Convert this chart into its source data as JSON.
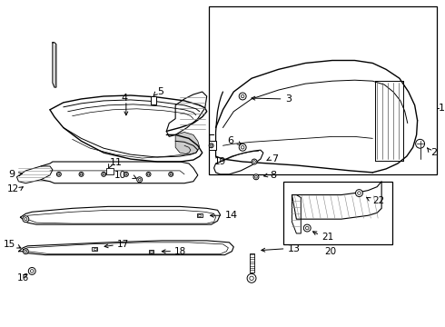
{
  "bg_color": "#ffffff",
  "line_color": "#000000",
  "gray_color": "#888888",
  "fig_width": 4.9,
  "fig_height": 3.6,
  "dpi": 100
}
